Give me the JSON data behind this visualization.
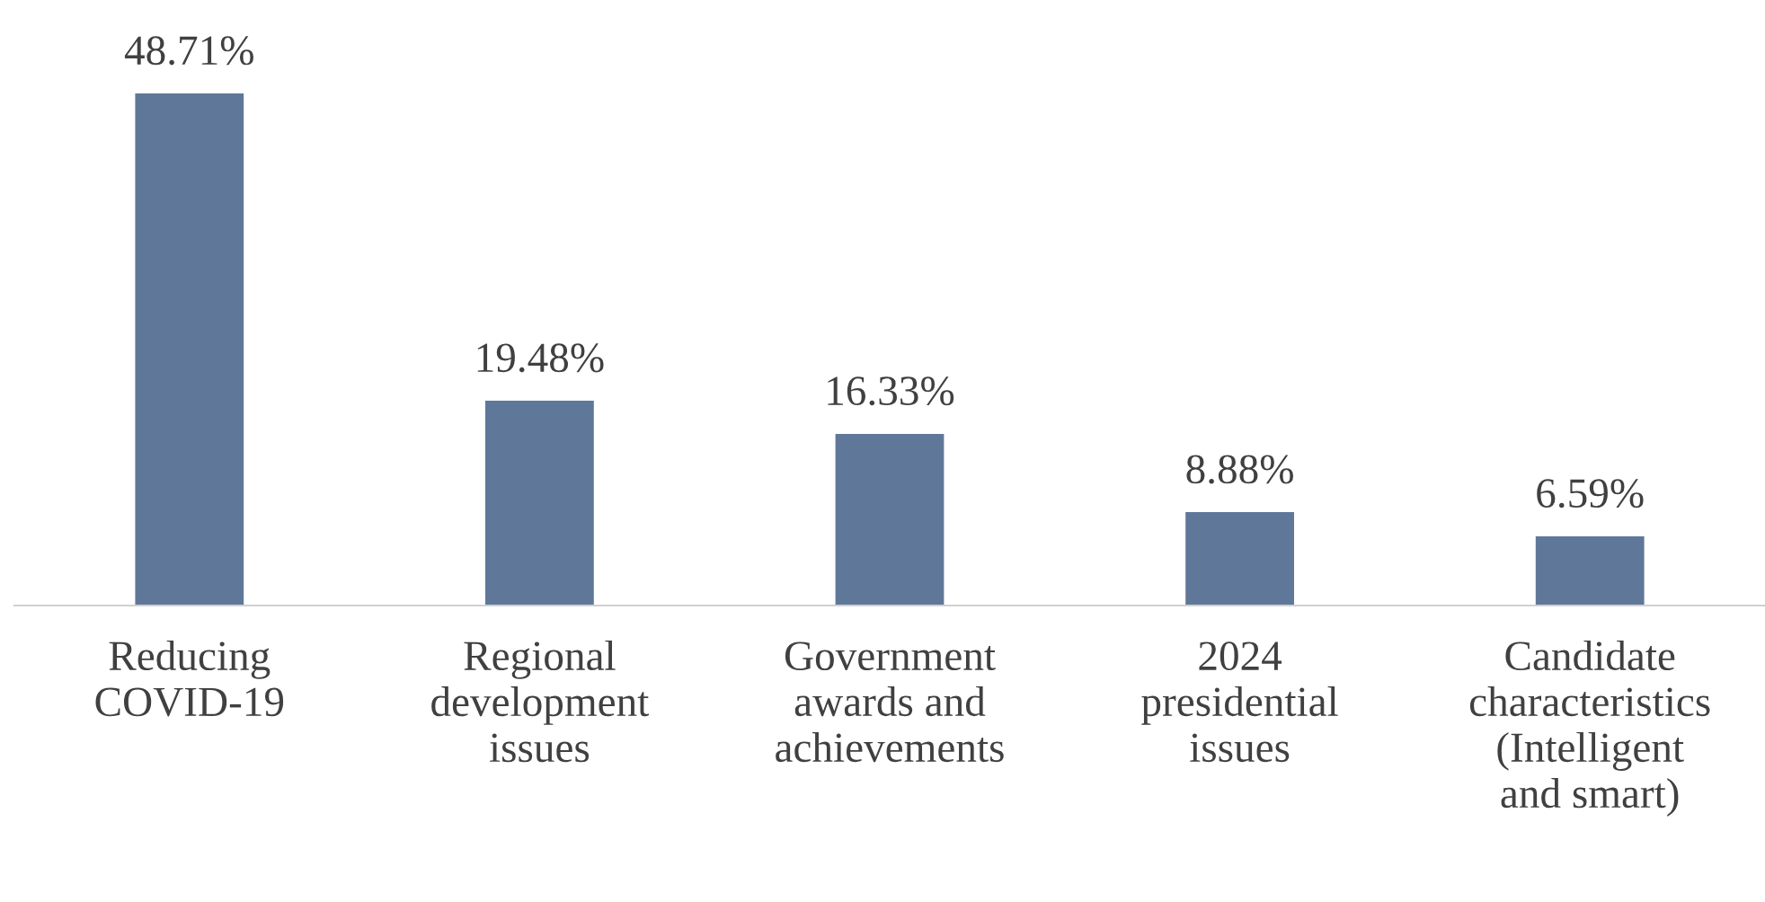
{
  "chart_data": {
    "type": "bar",
    "categories": [
      "Reducing COVID-19",
      "Regional development issues",
      "Government awards and achievements",
      "2024 presidential issues",
      "Candidate characteristics (Intelligent and smart)"
    ],
    "values": [
      48.71,
      19.48,
      16.33,
      8.88,
      6.59
    ],
    "value_labels": [
      "48.71%",
      "19.48%",
      "16.33%",
      "8.88%",
      "6.59%"
    ],
    "color": "#5f7799",
    "grid": false,
    "legend": false
  }
}
